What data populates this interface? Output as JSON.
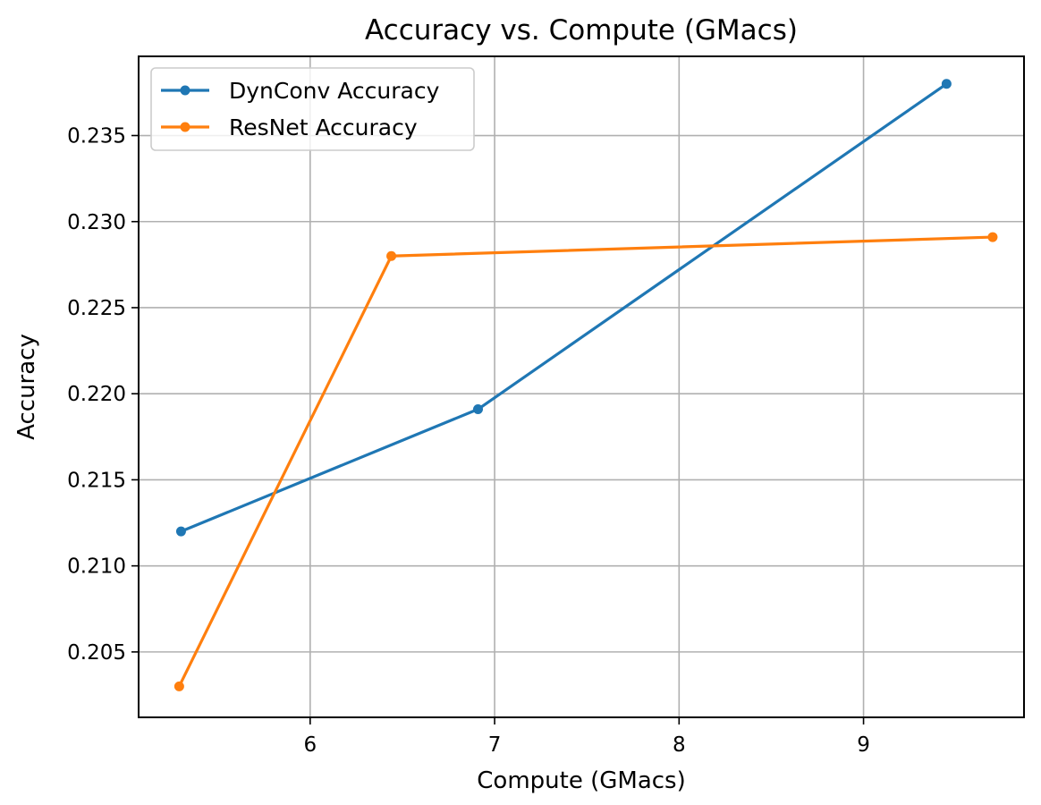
{
  "chart_data": {
    "type": "line",
    "title": "Accuracy vs. Compute (GMacs)",
    "xlabel": "Compute (GMacs)",
    "ylabel": "Accuracy",
    "xlim": [
      5.07,
      9.87
    ],
    "ylim": [
      0.2012,
      0.2396
    ],
    "xticks": [
      6,
      7,
      8,
      9
    ],
    "xtick_labels": [
      "6",
      "7",
      "8",
      "9"
    ],
    "yticks": [
      0.205,
      0.21,
      0.215,
      0.22,
      0.225,
      0.23,
      0.235
    ],
    "ytick_labels": [
      "0.205",
      "0.210",
      "0.215",
      "0.220",
      "0.225",
      "0.230",
      "0.235"
    ],
    "grid": true,
    "legend_position": "top-left",
    "series": [
      {
        "name": "DynConv Accuracy",
        "color": "#1f77b4",
        "x": [
          5.3,
          6.91,
          9.45
        ],
        "y": [
          0.212,
          0.2191,
          0.238
        ]
      },
      {
        "name": "ResNet Accuracy",
        "color": "#ff7f0e",
        "x": [
          5.29,
          6.44,
          9.7
        ],
        "y": [
          0.203,
          0.228,
          0.2291
        ]
      }
    ]
  }
}
